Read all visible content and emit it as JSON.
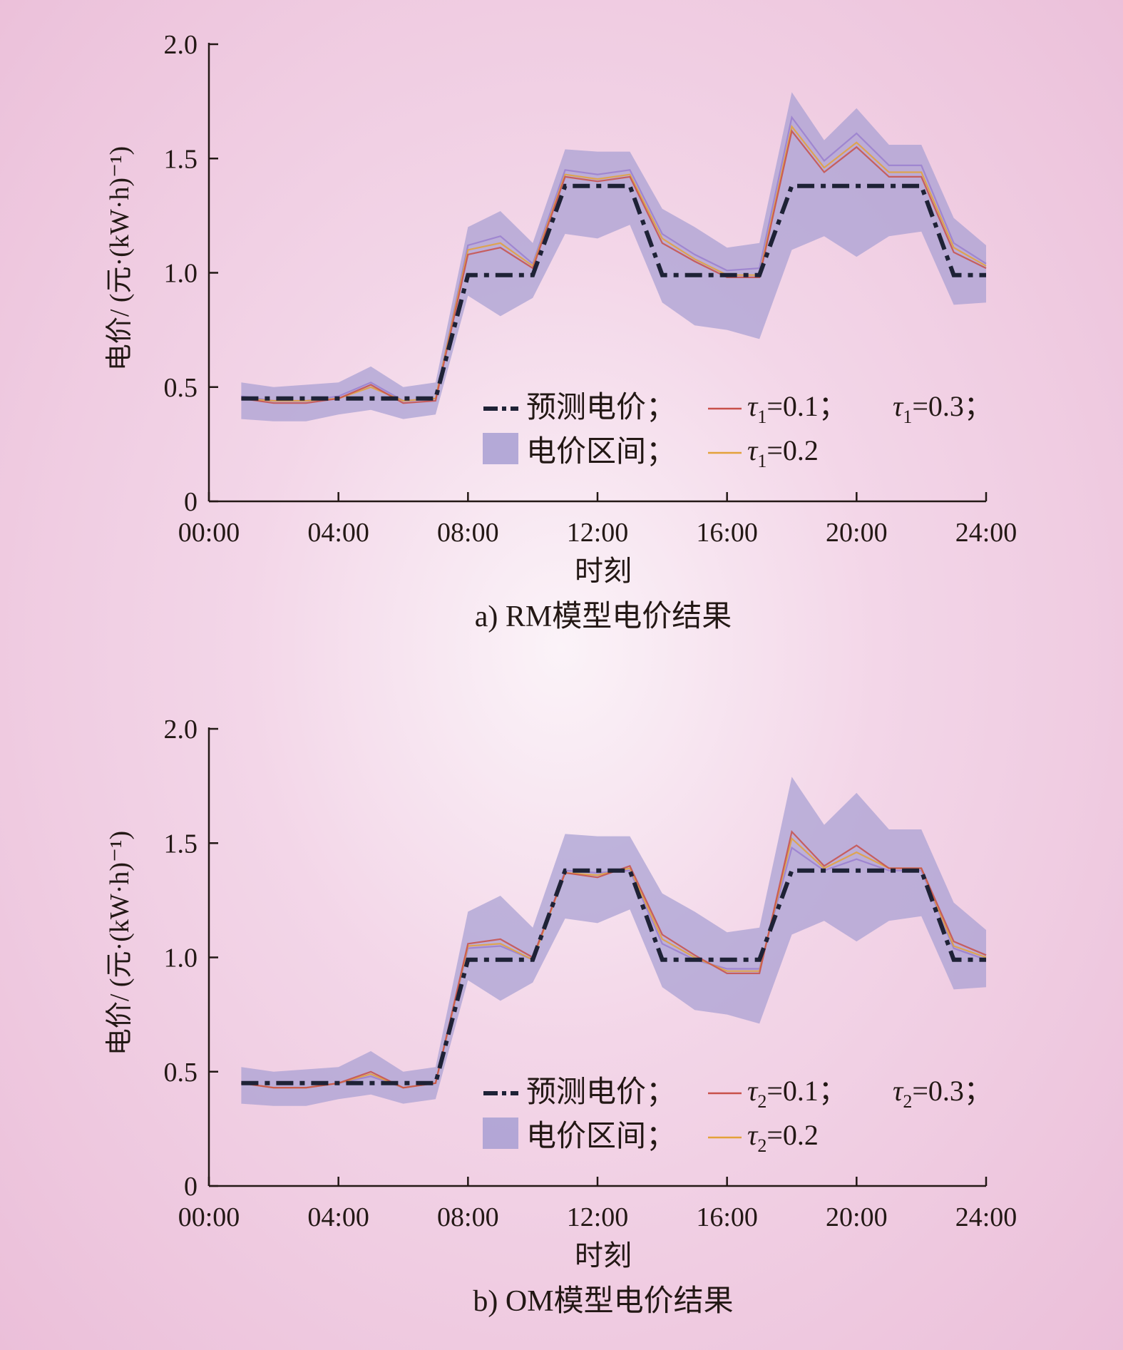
{
  "chart_data": [
    {
      "type": "line",
      "caption": "a) RM模型电价结果",
      "xlabel": "时刻",
      "ylabel": "电价/ (元·(kW·h)⁻¹)",
      "xticks": [
        "00:00",
        "04:00",
        "08:00",
        "12:00",
        "16:00",
        "20:00",
        "24:00"
      ],
      "yticks": [
        "0",
        "0.5",
        "1.0",
        "1.5",
        "2.0"
      ],
      "xlim": [
        0,
        24
      ],
      "ylim": [
        0,
        2.0
      ],
      "x": [
        1,
        2,
        3,
        4,
        5,
        6,
        7,
        8,
        9,
        10,
        11,
        12,
        13,
        14,
        15,
        16,
        17,
        18,
        19,
        20,
        21,
        22,
        23,
        24
      ],
      "band": {
        "name": "电价区间；",
        "lower": [
          0.36,
          0.35,
          0.35,
          0.38,
          0.4,
          0.36,
          0.38,
          0.9,
          0.81,
          0.89,
          1.17,
          1.15,
          1.21,
          0.87,
          0.77,
          0.75,
          0.71,
          1.1,
          1.16,
          1.07,
          1.16,
          1.18,
          0.86,
          0.87
        ],
        "upper": [
          0.52,
          0.5,
          0.51,
          0.52,
          0.59,
          0.5,
          0.52,
          1.2,
          1.27,
          1.13,
          1.54,
          1.53,
          1.53,
          1.28,
          1.2,
          1.11,
          1.13,
          1.79,
          1.58,
          1.72,
          1.56,
          1.56,
          1.24,
          1.12
        ]
      },
      "forecast": {
        "name": "预测电价；",
        "values": [
          0.45,
          0.45,
          0.45,
          0.45,
          0.45,
          0.45,
          0.45,
          0.99,
          0.99,
          0.99,
          1.38,
          1.38,
          1.38,
          0.99,
          0.99,
          0.99,
          0.99,
          1.38,
          1.38,
          1.38,
          1.38,
          1.38,
          0.99,
          0.99
        ]
      },
      "series": [
        {
          "name": "τ1=0.1；",
          "color": "#c8504a",
          "values": [
            0.45,
            0.43,
            0.43,
            0.45,
            0.51,
            0.43,
            0.44,
            1.08,
            1.11,
            1.02,
            1.42,
            1.4,
            1.42,
            1.13,
            1.05,
            0.98,
            0.98,
            1.62,
            1.44,
            1.55,
            1.42,
            1.42,
            1.09,
            1.02
          ]
        },
        {
          "name": "τ1=0.2",
          "color": "#e3a23a",
          "values": [
            0.45,
            0.44,
            0.44,
            0.45,
            0.5,
            0.44,
            0.45,
            1.1,
            1.13,
            1.03,
            1.43,
            1.41,
            1.43,
            1.15,
            1.06,
            0.99,
            0.99,
            1.64,
            1.46,
            1.57,
            1.44,
            1.44,
            1.11,
            1.03
          ]
        },
        {
          "name": "τ1=0.3；",
          "color": "#9a7fcf",
          "values": [
            0.46,
            0.44,
            0.44,
            0.46,
            0.52,
            0.44,
            0.45,
            1.12,
            1.16,
            1.04,
            1.45,
            1.43,
            1.45,
            1.17,
            1.08,
            1.01,
            1.02,
            1.68,
            1.49,
            1.61,
            1.47,
            1.47,
            1.13,
            1.04
          ]
        }
      ],
      "legend_placement": "inside-bottom-right"
    },
    {
      "type": "line",
      "caption": "b) OM模型电价结果",
      "xlabel": "时刻",
      "ylabel": "电价/ (元·(kW·h)⁻¹)",
      "xticks": [
        "00:00",
        "04:00",
        "08:00",
        "12:00",
        "16:00",
        "20:00",
        "24:00"
      ],
      "yticks": [
        "0",
        "0.5",
        "1.0",
        "1.5",
        "2.0"
      ],
      "xlim": [
        0,
        24
      ],
      "ylim": [
        0,
        2.0
      ],
      "x": [
        1,
        2,
        3,
        4,
        5,
        6,
        7,
        8,
        9,
        10,
        11,
        12,
        13,
        14,
        15,
        16,
        17,
        18,
        19,
        20,
        21,
        22,
        23,
        24
      ],
      "band": {
        "name": "电价区间；",
        "lower": [
          0.36,
          0.35,
          0.35,
          0.38,
          0.4,
          0.36,
          0.38,
          0.9,
          0.81,
          0.89,
          1.17,
          1.15,
          1.21,
          0.87,
          0.77,
          0.75,
          0.71,
          1.1,
          1.16,
          1.07,
          1.16,
          1.18,
          0.86,
          0.87
        ],
        "upper": [
          0.52,
          0.5,
          0.51,
          0.52,
          0.59,
          0.5,
          0.52,
          1.2,
          1.27,
          1.13,
          1.54,
          1.53,
          1.53,
          1.28,
          1.2,
          1.11,
          1.13,
          1.79,
          1.58,
          1.72,
          1.56,
          1.56,
          1.24,
          1.12
        ]
      },
      "forecast": {
        "name": "预测电价；",
        "values": [
          0.45,
          0.45,
          0.45,
          0.45,
          0.45,
          0.45,
          0.45,
          0.99,
          0.99,
          0.99,
          1.38,
          1.38,
          1.38,
          0.99,
          0.99,
          0.99,
          0.99,
          1.38,
          1.38,
          1.38,
          1.38,
          1.38,
          0.99,
          0.99
        ]
      },
      "series": [
        {
          "name": "τ2=0.1；",
          "color": "#c8504a",
          "values": [
            0.45,
            0.43,
            0.43,
            0.45,
            0.5,
            0.43,
            0.45,
            1.06,
            1.08,
            1.0,
            1.37,
            1.35,
            1.4,
            1.1,
            1.01,
            0.93,
            0.93,
            1.55,
            1.4,
            1.49,
            1.39,
            1.39,
            1.07,
            1.01
          ]
        },
        {
          "name": "τ2=0.2",
          "color": "#e3a23a",
          "values": [
            0.45,
            0.43,
            0.43,
            0.45,
            0.49,
            0.43,
            0.45,
            1.05,
            1.06,
            0.99,
            1.37,
            1.36,
            1.39,
            1.08,
            1.0,
            0.94,
            0.94,
            1.52,
            1.39,
            1.46,
            1.39,
            1.39,
            1.05,
            1.0
          ]
        },
        {
          "name": "τ2=0.3；",
          "color": "#9a7fcf",
          "values": [
            0.45,
            0.43,
            0.43,
            0.45,
            0.48,
            0.43,
            0.45,
            1.04,
            1.05,
            0.99,
            1.38,
            1.37,
            1.38,
            1.06,
            0.99,
            0.95,
            0.95,
            1.48,
            1.38,
            1.43,
            1.38,
            1.38,
            1.04,
            0.99
          ]
        }
      ],
      "legend_placement": "inside-bottom-right"
    }
  ],
  "colors": {
    "band": "#a89fd2",
    "forecast": "#1e2236",
    "axis": "#231815"
  }
}
